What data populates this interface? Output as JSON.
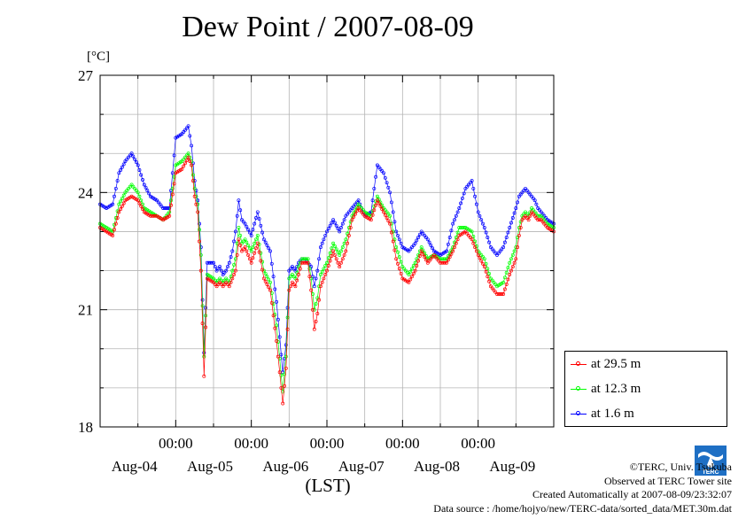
{
  "title": "Dew Point / 2007-08-09",
  "unit_label": "[°C]",
  "legend": {
    "items": [
      {
        "label": "at 29.5 m",
        "color": "#ff0000"
      },
      {
        "label": "at 12.3 m",
        "color": "#00ff00"
      },
      {
        "label": "at 1.6 m",
        "color": "#0000ff"
      }
    ]
  },
  "credits": {
    "line1": "©TERC, Univ. Tsukuba",
    "line2": "Observed at TERC Tower site",
    "line3": "Created Automatically at 2007-08-09/23:32:07",
    "line4": "Data source : /home/hojyo/new/TERC-data/sorted_data/MET.30m.dat"
  },
  "logo_text": "TERC",
  "chart_data": {
    "type": "line",
    "title": "Dew Point / 2007-08-09",
    "xlabel": "(LST)",
    "ylabel": "[°C]",
    "x_unit": "hours since 2007-08-03 12:00 LST",
    "xlim": [
      0,
      144
    ],
    "ylim": [
      18,
      27
    ],
    "yticks": [
      18,
      21,
      24,
      27
    ],
    "xtick_labels": [
      {
        "x": 24,
        "time": "00:00",
        "day": "Aug-04"
      },
      {
        "x": 48,
        "time": "00:00",
        "day": "Aug-05"
      },
      {
        "x": 72,
        "time": "00:00",
        "day": "Aug-06"
      },
      {
        "x": 96,
        "time": "00:00",
        "day": "Aug-07"
      },
      {
        "x": 120,
        "time": "00:00",
        "day": "Aug-08"
      }
    ],
    "day_labels": [
      {
        "x": 12,
        "day": "Aug-04"
      },
      {
        "x": 36,
        "day": "Aug-05"
      },
      {
        "x": 60,
        "day": "Aug-06"
      },
      {
        "x": 84,
        "day": "Aug-07"
      },
      {
        "x": 108,
        "day": "Aug-08"
      },
      {
        "x": 132,
        "day": "Aug-09"
      }
    ],
    "grid": true,
    "legend_position": "bottom-right, outside plot",
    "series": [
      {
        "name": "at 29.5 m",
        "color": "#ff0000",
        "x": [
          0,
          2,
          4,
          6,
          8,
          10,
          12,
          14,
          16,
          18,
          20,
          22,
          24,
          26,
          28,
          29,
          30,
          31,
          32,
          33,
          34,
          36,
          37,
          38,
          39,
          40,
          41,
          42,
          43,
          44,
          45,
          46,
          48,
          50,
          52,
          54,
          56,
          58,
          59,
          60,
          61,
          62,
          63,
          64,
          65,
          66,
          67,
          68,
          69,
          70,
          72,
          74,
          76,
          78,
          80,
          82,
          84,
          86,
          88,
          90,
          92,
          94,
          96,
          98,
          100,
          102,
          104,
          106,
          108,
          110,
          112,
          114,
          116,
          118,
          120,
          122,
          124,
          126,
          128,
          130,
          132,
          133,
          134,
          135,
          136,
          137,
          138,
          139,
          140,
          141,
          142,
          144
        ],
        "y": [
          23.1,
          23.0,
          22.9,
          23.5,
          23.8,
          23.9,
          23.8,
          23.5,
          23.4,
          23.4,
          23.3,
          23.4,
          24.5,
          24.6,
          24.9,
          24.7,
          23.9,
          23.5,
          22.0,
          19.3,
          21.8,
          21.7,
          21.6,
          21.7,
          21.6,
          21.7,
          21.6,
          21.8,
          22.0,
          22.8,
          22.5,
          22.6,
          22.2,
          22.7,
          21.8,
          21.5,
          20.2,
          18.6,
          19.5,
          21.5,
          21.7,
          21.6,
          21.9,
          22.2,
          22.2,
          22.2,
          21.5,
          20.5,
          20.9,
          21.6,
          22.0,
          22.5,
          22.1,
          22.5,
          23.3,
          23.6,
          23.4,
          23.3,
          23.8,
          23.5,
          23.2,
          22.3,
          21.8,
          21.7,
          22.0,
          22.5,
          22.2,
          22.4,
          22.2,
          22.2,
          22.5,
          22.9,
          23.0,
          22.8,
          22.4,
          22.1,
          21.6,
          21.4,
          21.4,
          21.9,
          22.3,
          22.9,
          23.3,
          23.4,
          23.3,
          23.5,
          23.4,
          23.3,
          23.3,
          23.2,
          23.1,
          23.0
        ]
      },
      {
        "name": "at 12.3 m",
        "color": "#00ff00",
        "x": [
          0,
          2,
          4,
          6,
          8,
          10,
          12,
          14,
          16,
          18,
          20,
          22,
          24,
          26,
          28,
          29,
          30,
          31,
          32,
          33,
          34,
          36,
          37,
          38,
          39,
          40,
          41,
          42,
          43,
          44,
          45,
          46,
          48,
          50,
          52,
          54,
          56,
          58,
          59,
          60,
          61,
          62,
          63,
          64,
          65,
          66,
          67,
          68,
          69,
          70,
          72,
          74,
          76,
          78,
          80,
          82,
          84,
          86,
          88,
          90,
          92,
          94,
          96,
          98,
          100,
          102,
          104,
          106,
          108,
          110,
          112,
          114,
          116,
          118,
          120,
          122,
          124,
          126,
          128,
          130,
          132,
          133,
          134,
          135,
          136,
          137,
          138,
          139,
          140,
          141,
          142,
          144
        ],
        "y": [
          23.2,
          23.1,
          23.0,
          23.7,
          24.0,
          24.2,
          24.0,
          23.6,
          23.5,
          23.4,
          23.3,
          23.5,
          24.7,
          24.8,
          25.0,
          24.8,
          24.1,
          23.7,
          22.4,
          19.8,
          21.9,
          21.8,
          21.7,
          21.8,
          21.7,
          21.8,
          21.7,
          22.0,
          22.3,
          23.1,
          22.7,
          22.8,
          22.5,
          22.9,
          22.0,
          21.7,
          20.6,
          18.9,
          19.8,
          21.8,
          21.9,
          21.8,
          22.1,
          22.3,
          22.3,
          22.3,
          21.8,
          21.0,
          21.3,
          21.9,
          22.2,
          22.7,
          22.4,
          22.8,
          23.4,
          23.7,
          23.5,
          23.4,
          23.9,
          23.6,
          23.4,
          22.6,
          22.1,
          21.9,
          22.2,
          22.6,
          22.3,
          22.4,
          22.3,
          22.3,
          22.6,
          23.1,
          23.1,
          23.0,
          22.5,
          22.3,
          21.8,
          21.6,
          21.7,
          22.2,
          22.6,
          23.1,
          23.4,
          23.5,
          23.4,
          23.6,
          23.5,
          23.4,
          23.4,
          23.3,
          23.2,
          23.1
        ]
      },
      {
        "name": "at 1.6 m",
        "color": "#0000ff",
        "x": [
          0,
          2,
          4,
          6,
          8,
          10,
          12,
          14,
          16,
          18,
          20,
          22,
          24,
          26,
          28,
          29,
          30,
          31,
          32,
          33,
          34,
          36,
          37,
          38,
          39,
          40,
          41,
          42,
          43,
          44,
          45,
          46,
          48,
          50,
          52,
          54,
          56,
          58,
          59,
          60,
          61,
          62,
          63,
          64,
          65,
          66,
          67,
          68,
          69,
          70,
          72,
          74,
          76,
          78,
          80,
          82,
          84,
          86,
          88,
          90,
          92,
          94,
          96,
          98,
          100,
          102,
          104,
          106,
          108,
          110,
          112,
          114,
          116,
          118,
          120,
          122,
          124,
          126,
          128,
          130,
          132,
          133,
          134,
          135,
          136,
          137,
          138,
          139,
          140,
          141,
          142,
          144
        ],
        "y": [
          23.7,
          23.6,
          23.7,
          24.5,
          24.8,
          25.0,
          24.7,
          24.2,
          23.9,
          23.8,
          23.6,
          23.6,
          25.4,
          25.5,
          25.7,
          25.2,
          24.3,
          23.8,
          22.6,
          19.9,
          22.2,
          22.2,
          22.0,
          22.1,
          21.9,
          22.0,
          22.2,
          22.5,
          23.0,
          23.8,
          23.3,
          23.2,
          22.9,
          23.5,
          22.8,
          22.5,
          21.2,
          19.4,
          20.1,
          22.0,
          22.1,
          22.0,
          22.2,
          22.3,
          22.3,
          22.2,
          22.1,
          21.6,
          22.0,
          22.6,
          23.0,
          23.3,
          23.0,
          23.4,
          23.6,
          23.8,
          23.4,
          23.5,
          24.7,
          24.5,
          24.0,
          23.0,
          22.6,
          22.5,
          22.7,
          23.0,
          22.8,
          22.5,
          22.4,
          22.5,
          23.2,
          23.6,
          24.1,
          24.3,
          23.5,
          23.1,
          22.6,
          22.4,
          22.6,
          23.1,
          23.6,
          23.9,
          24.0,
          24.1,
          24.0,
          23.9,
          23.8,
          23.6,
          23.5,
          23.4,
          23.3,
          23.2
        ]
      }
    ]
  }
}
